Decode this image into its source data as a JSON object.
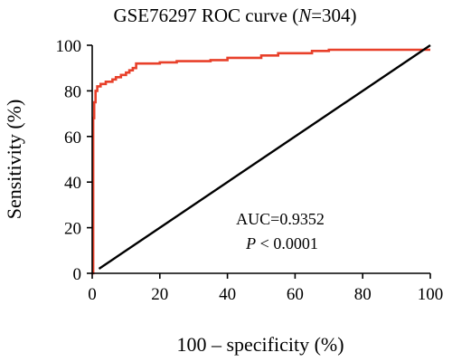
{
  "chart_data": {
    "type": "line",
    "title": {
      "prefix": "GSE76297 ROC curve (",
      "var": "N",
      "suffix": "=304)"
    },
    "xlabel": "100 – specificity (%)",
    "ylabel": "Sensitivity (%)",
    "xlim": [
      0,
      100
    ],
    "ylim": [
      0,
      100
    ],
    "xticks": [
      0,
      20,
      40,
      60,
      80,
      100
    ],
    "yticks": [
      0,
      20,
      40,
      60,
      80,
      100
    ],
    "grid": false,
    "annotations": {
      "auc": "AUC=0.9352",
      "p_var": "P",
      "p_rest": " < 0.0001"
    },
    "series": [
      {
        "color": "#e8402a",
        "x": [
          0,
          0.3,
          0.3,
          0.6,
          0.6,
          1,
          1,
          1.5,
          1.5,
          2.5,
          2.5,
          4,
          4,
          6,
          6,
          7,
          7,
          8.5,
          8.5,
          10,
          10,
          11,
          11,
          12,
          12,
          13,
          13,
          20,
          20,
          25,
          25,
          35,
          35,
          40,
          40,
          50,
          50,
          55,
          55,
          65,
          65,
          70,
          70,
          100
        ],
        "y": [
          0,
          0,
          68,
          68,
          75,
          75,
          80,
          80,
          82,
          82,
          83,
          83,
          84,
          84,
          85,
          85,
          86,
          86,
          87,
          87,
          88,
          88,
          89,
          89,
          90,
          90,
          92,
          92,
          92.5,
          92.5,
          93,
          93,
          93.5,
          93.5,
          94.5,
          94.5,
          95.5,
          95.5,
          96.5,
          96.5,
          97.5,
          97.5,
          98,
          98
        ]
      },
      {
        "color": "#000000",
        "x": [
          2,
          100
        ],
        "y": [
          2,
          100
        ]
      }
    ]
  }
}
